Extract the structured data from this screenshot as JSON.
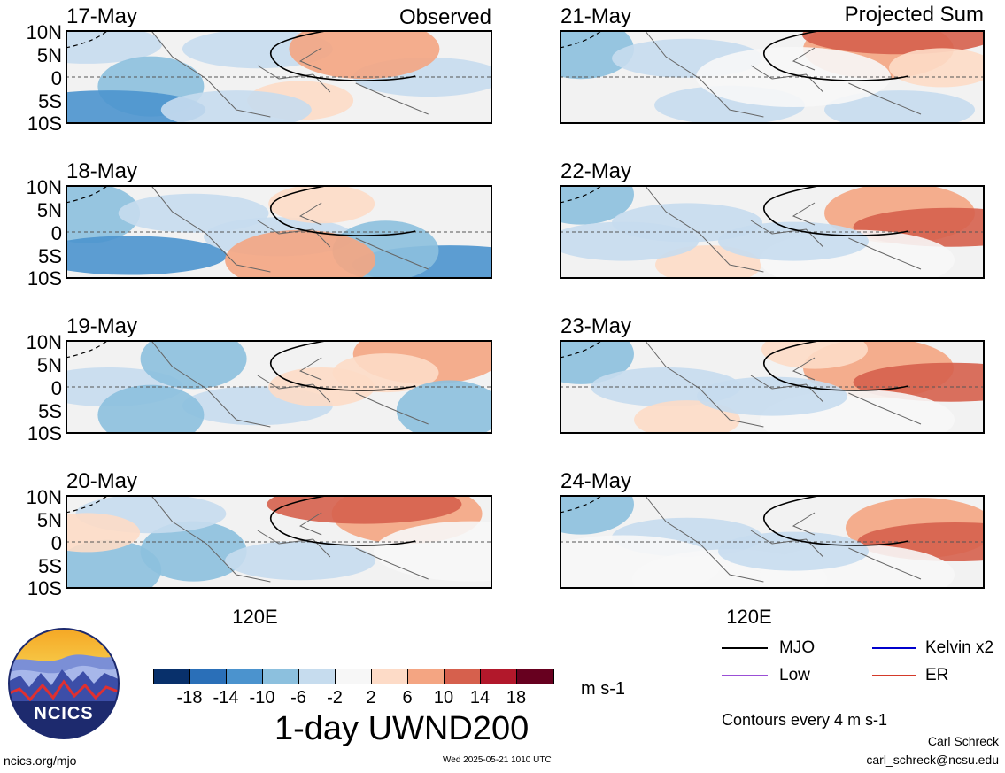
{
  "header": {
    "left_title": "Observed",
    "right_title": "Projected Sum"
  },
  "panels_left": [
    {
      "date": "17-May"
    },
    {
      "date": "18-May"
    },
    {
      "date": "19-May"
    },
    {
      "date": "20-May"
    }
  ],
  "panels_right": [
    {
      "date": "21-May"
    },
    {
      "date": "22-May"
    },
    {
      "date": "23-May"
    },
    {
      "date": "24-May"
    }
  ],
  "lat_ticks": [
    "10N",
    "5N",
    "0",
    "5S",
    "10S"
  ],
  "lon_tick": "120E",
  "colorbar": {
    "colors": [
      "#08306b",
      "#2a6fb8",
      "#4b93ce",
      "#8cc0de",
      "#c6dcee",
      "#f7f7f7",
      "#fddbc7",
      "#f4a582",
      "#d6604d",
      "#b2182b",
      "#67001f"
    ],
    "ticks": [
      "-18",
      "-14",
      "-10",
      "-6",
      "-2",
      "2",
      "6",
      "10",
      "14",
      "18"
    ],
    "units": "m s-1"
  },
  "title": "1-day UWND200",
  "legend": {
    "items": [
      {
        "label": "MJO",
        "color": "#000000"
      },
      {
        "label": "Kelvin x2",
        "color": "#0000cc"
      },
      {
        "label": "Low",
        "color": "#9b4fd6"
      },
      {
        "label": "ER",
        "color": "#d43a2a"
      }
    ],
    "note": "Contours every 4 m s-1"
  },
  "logo_text": "NCICS",
  "footer": {
    "url": "ncics.org/mjo",
    "timestamp": "Wed 2025-05-21 1010 UTC",
    "author": "Carl Schreck",
    "email": "carl_schreck@ncsu.edu"
  }
}
